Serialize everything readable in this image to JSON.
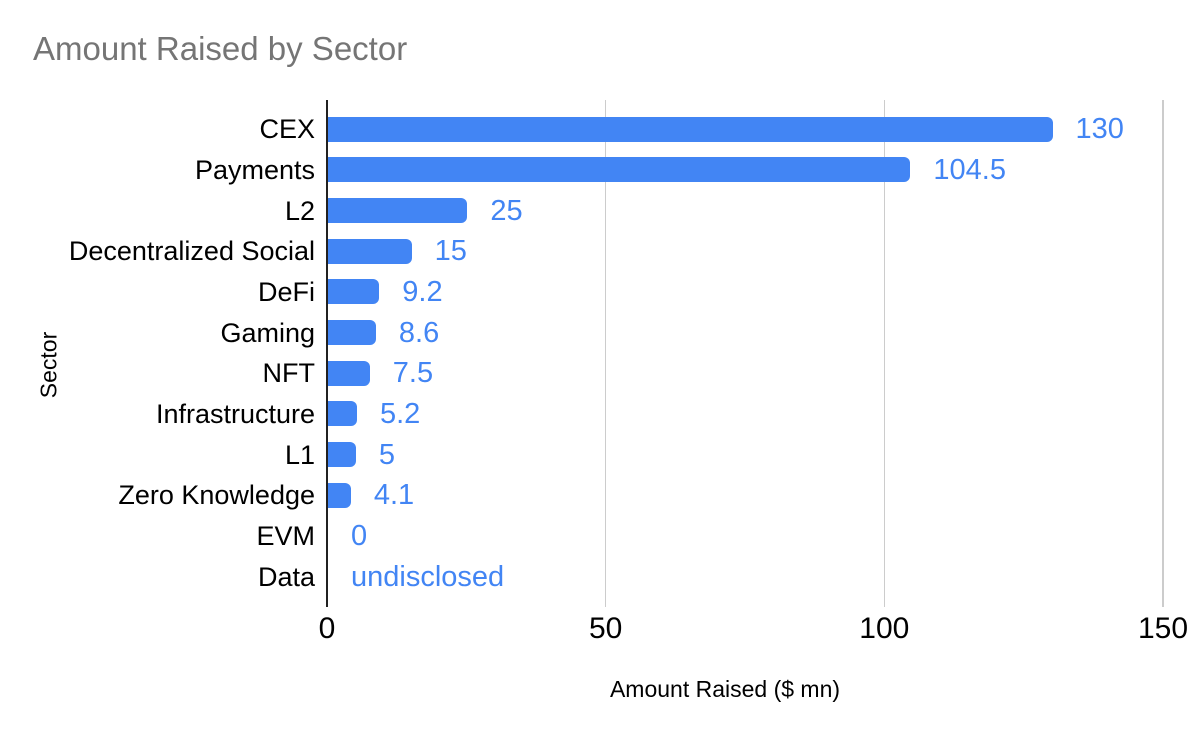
{
  "chart_data": {
    "type": "bar",
    "orientation": "horizontal",
    "title": "Amount Raised by Sector",
    "xlabel": "Amount Raised ($ mn)",
    "ylabel": "Sector",
    "categories": [
      "CEX",
      "Payments",
      "L2",
      "Decentralized Social",
      "DeFi",
      "Gaming",
      "NFT",
      "Infrastructure",
      "L1",
      "Zero Knowledge",
      "EVM",
      "Data"
    ],
    "values": [
      130,
      104.5,
      25,
      15,
      9.2,
      8.6,
      7.5,
      5.2,
      5,
      4.1,
      0,
      null
    ],
    "value_labels": [
      "130",
      "104.5",
      "25",
      "15",
      "9.2",
      "8.6",
      "7.5",
      "5.2",
      "5",
      "4.1",
      "0",
      "undisclosed"
    ],
    "xlim": [
      0,
      150
    ],
    "xticks": [
      0,
      50,
      100,
      150
    ],
    "xtick_labels": [
      "0",
      "50",
      "100",
      "150"
    ],
    "grid": true,
    "legend": false,
    "colors": {
      "bar": "#4285f4",
      "value_label": "#4285f4",
      "title": "#757575",
      "label": "#000000",
      "gridline": "#cccccc",
      "baseline": "#212121",
      "background": "#ffffff"
    }
  }
}
